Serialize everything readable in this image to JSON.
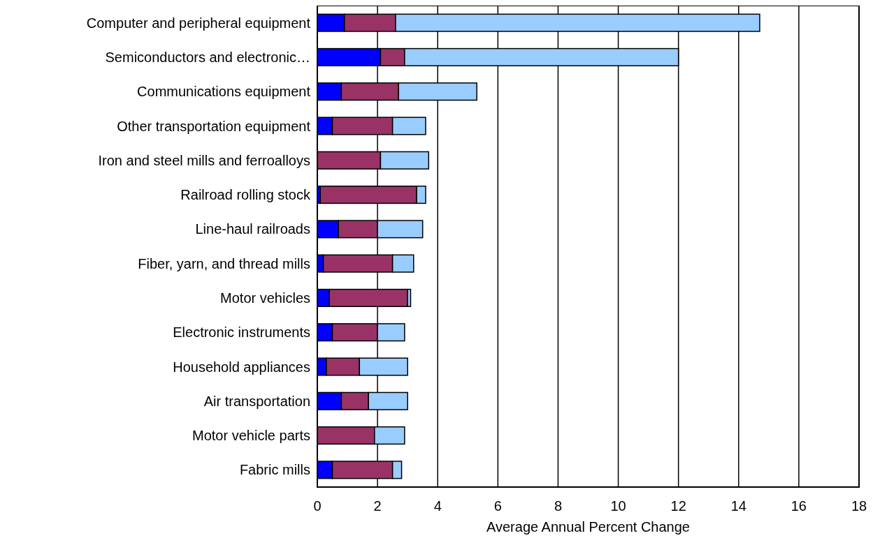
{
  "chart_data": {
    "type": "bar",
    "orientation": "horizontal",
    "stacked": true,
    "xlabel": "Average Annual Percent Change",
    "categories": [
      "Computer and peripheral equipment",
      "Semiconductors and electronic…",
      "Communications equipment",
      "Other transportation equipment",
      "Iron and steel mills and ferroalloys",
      "Railroad rolling stock",
      "Line-haul railroads",
      "Fiber, yarn, and thread mills",
      "Motor vehicles",
      "Electronic instruments",
      "Household appliances",
      "Air transportation",
      "Motor vehicle parts",
      "Fabric mills"
    ],
    "series": [
      {
        "color": "#0000ff",
        "values": [
          0.9,
          2.1,
          0.8,
          0.5,
          0,
          0.1,
          0.7,
          0.2,
          0.4,
          0.5,
          0.3,
          0.8,
          0,
          0.5
        ]
      },
      {
        "color": "#993366",
        "values": [
          1.7,
          0.8,
          1.9,
          2.0,
          2.1,
          3.2,
          1.3,
          2.3,
          2.6,
          1.5,
          1.1,
          0.9,
          1.9,
          2.0
        ]
      },
      {
        "color": "#99ccff",
        "values": [
          12.1,
          9.1,
          2.6,
          1.1,
          1.6,
          0.3,
          1.5,
          0.7,
          0.1,
          0.9,
          1.6,
          1.3,
          1.0,
          0.3
        ]
      }
    ],
    "xlim": [
      0,
      18
    ],
    "xticks": [
      0,
      2,
      4,
      6,
      8,
      10,
      12,
      14,
      16,
      18
    ],
    "grid": "x"
  }
}
